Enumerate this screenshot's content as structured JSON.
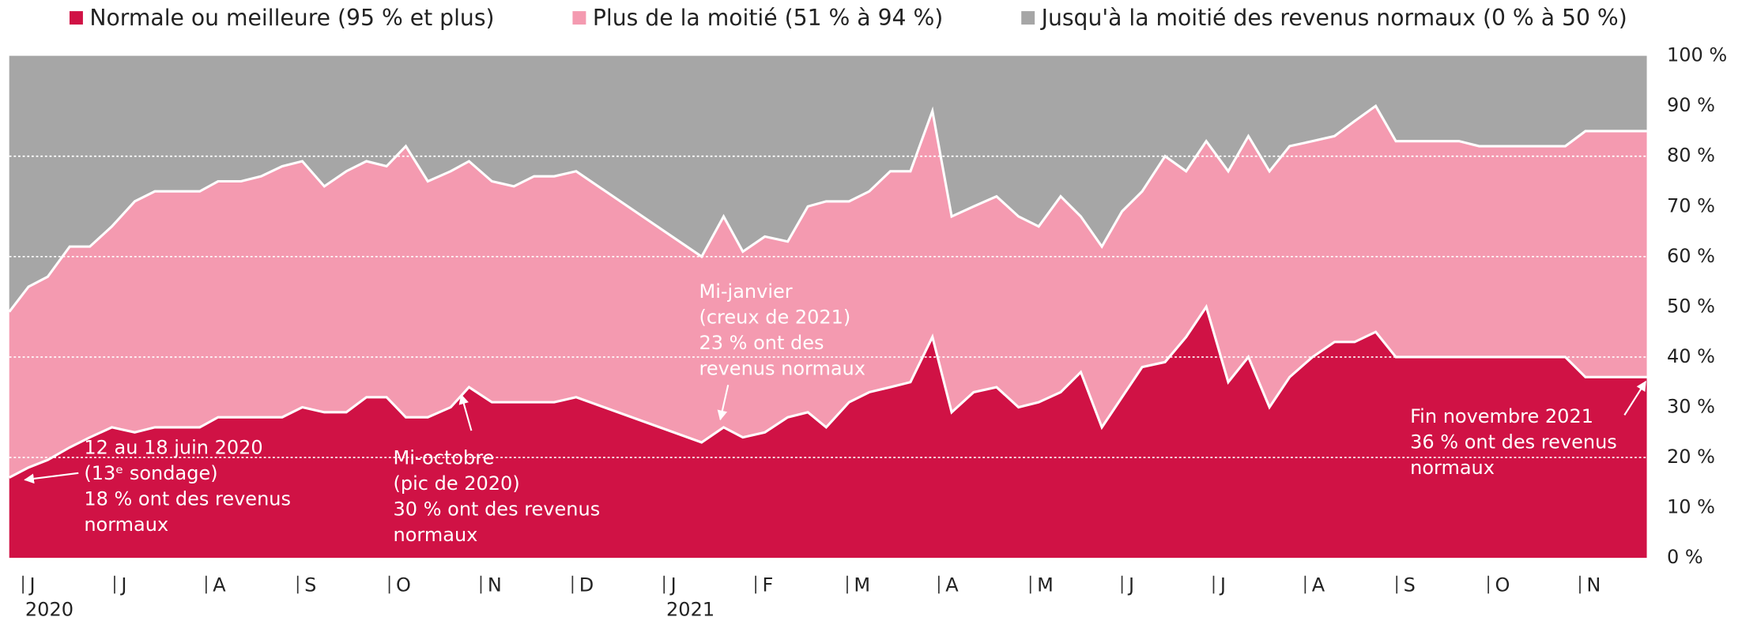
{
  "chart_data": {
    "type": "stacked_area",
    "legend": "top",
    "x": [
      -0.15,
      0.06,
      0.27,
      0.51,
      0.73,
      0.97,
      1.22,
      1.44,
      1.68,
      1.93,
      2.13,
      2.38,
      2.6,
      2.83,
      3.05,
      3.29,
      3.53,
      3.75,
      3.97,
      4.18,
      4.42,
      4.67,
      4.87,
      5.12,
      5.36,
      5.58,
      5.8,
      6.04,
      7.41,
      7.65,
      7.86,
      8.1,
      8.35,
      8.57,
      8.77,
      9.02,
      9.24,
      9.47,
      9.69,
      9.93,
      10.14,
      10.38,
      10.63,
      10.87,
      11.09,
      11.33,
      11.55,
      11.78,
      12.0,
      12.22,
      12.47,
      12.7,
      12.92,
      13.16,
      13.38,
      13.61,
      13.83,
      14.08,
      14.32,
      14.54,
      14.77,
      14.99,
      15.21,
      15.45,
      15.68,
      15.9,
      16.15,
      16.39,
      16.61,
      16.84,
      17.06,
      17.3,
      17.73
    ],
    "series": [
      {
        "name": "Normale ou meilleure (95 % et plus)",
        "color": "#d01245",
        "values": [
          16,
          18,
          19.5,
          22,
          24,
          26,
          25,
          26,
          26,
          26,
          28,
          28,
          28,
          28,
          30,
          29,
          29,
          32,
          32,
          28,
          28,
          30,
          34,
          31,
          31,
          31,
          31,
          32,
          23,
          26,
          24,
          25,
          28,
          29,
          26,
          31,
          33,
          34,
          35,
          44,
          29,
          33,
          34,
          30,
          31,
          33,
          37,
          26,
          32,
          38,
          39,
          44,
          50,
          35,
          40,
          30,
          36,
          40,
          43,
          43,
          45,
          40,
          40,
          40,
          40,
          40,
          40,
          40,
          40,
          40,
          36,
          36,
          36
        ]
      },
      {
        "name": "Plus de la moitié (51 % à 94 %)",
        "color": "#f49ab0",
        "values": [
          33,
          36,
          36.5,
          40,
          38,
          40,
          46,
          47,
          47,
          47,
          47,
          47,
          48,
          50,
          49,
          45,
          48,
          47,
          46,
          54,
          47,
          47,
          45,
          44,
          43,
          45,
          45,
          45,
          37,
          42,
          37,
          39,
          35,
          41,
          45,
          40,
          40,
          43,
          42,
          45,
          39,
          37,
          38,
          38,
          35,
          39,
          31,
          36,
          37,
          35,
          41,
          33,
          33,
          42,
          44,
          47,
          46,
          43,
          41,
          44,
          45,
          43,
          43,
          43,
          43,
          42,
          42,
          42,
          42,
          42,
          49,
          49,
          49
        ]
      },
      {
        "name": "Jusqu'à la moitié des revenus normaux (0 % à 50 %)",
        "color": "#a6a6a6",
        "values": [
          51,
          46,
          44,
          38,
          38,
          34,
          29,
          27,
          27,
          27,
          25,
          25,
          24,
          22,
          21,
          26,
          23,
          21,
          22,
          18,
          25,
          23,
          21,
          25,
          26,
          24,
          24,
          23,
          40,
          32,
          39,
          36,
          37,
          30,
          29,
          29,
          27,
          23,
          23,
          11,
          32,
          30,
          28,
          32,
          34,
          28,
          32,
          38,
          31,
          27,
          20,
          23,
          17,
          23,
          16,
          23,
          18,
          17,
          16,
          13,
          10,
          17,
          17,
          17,
          17,
          18,
          18,
          18,
          18,
          18,
          15,
          15,
          15
        ]
      }
    ],
    "xlim": [
      -0.15,
      17.73
    ],
    "xticks": [
      {
        "value": 0,
        "label": "J"
      },
      {
        "value": 1,
        "label": "J"
      },
      {
        "value": 2,
        "label": "A"
      },
      {
        "value": 3,
        "label": "S"
      },
      {
        "value": 4,
        "label": "O"
      },
      {
        "value": 5,
        "label": "N"
      },
      {
        "value": 6,
        "label": "D"
      },
      {
        "value": 7,
        "label": "J"
      },
      {
        "value": 8,
        "label": "F"
      },
      {
        "value": 9,
        "label": "M"
      },
      {
        "value": 10,
        "label": "A"
      },
      {
        "value": 11,
        "label": "M"
      },
      {
        "value": 12,
        "label": "J"
      },
      {
        "value": 13,
        "label": "J"
      },
      {
        "value": 14,
        "label": "A"
      },
      {
        "value": 15,
        "label": "S"
      },
      {
        "value": 16,
        "label": "O"
      },
      {
        "value": 17,
        "label": "N"
      }
    ],
    "year_labels": [
      {
        "value": 0,
        "label": "2020"
      },
      {
        "value": 7,
        "label": "2021"
      }
    ],
    "ylim": [
      0,
      100
    ],
    "yticks": [
      {
        "value": 0,
        "label": "0 %"
      },
      {
        "value": 10,
        "label": "10 %"
      },
      {
        "value": 20,
        "label": "20 %"
      },
      {
        "value": 30,
        "label": "30 %"
      },
      {
        "value": 40,
        "label": "40 %"
      },
      {
        "value": 50,
        "label": "50 %"
      },
      {
        "value": 60,
        "label": "60 %"
      },
      {
        "value": 70,
        "label": "70 %"
      },
      {
        "value": 80,
        "label": "80 %"
      },
      {
        "value": 90,
        "label": "90 %"
      },
      {
        "value": 100,
        "label": "100 %"
      }
    ],
    "grid": true,
    "annotations": [
      {
        "lines": [
          "12 au 18 juin 2020",
          "(13ᵉ sondage)",
          "18 % ont des revenus",
          "normaux"
        ]
      },
      {
        "lines": [
          "Mi-octobre",
          "(pic de 2020)",
          "30 % ont des revenus",
          "normaux"
        ]
      },
      {
        "lines": [
          "Mi-janvier",
          "(creux de 2021)",
          "23 % ont des",
          "revenus normaux"
        ]
      },
      {
        "lines": [
          "Fin novembre 2021",
          "36 % ont des revenus",
          "normaux"
        ]
      }
    ]
  }
}
